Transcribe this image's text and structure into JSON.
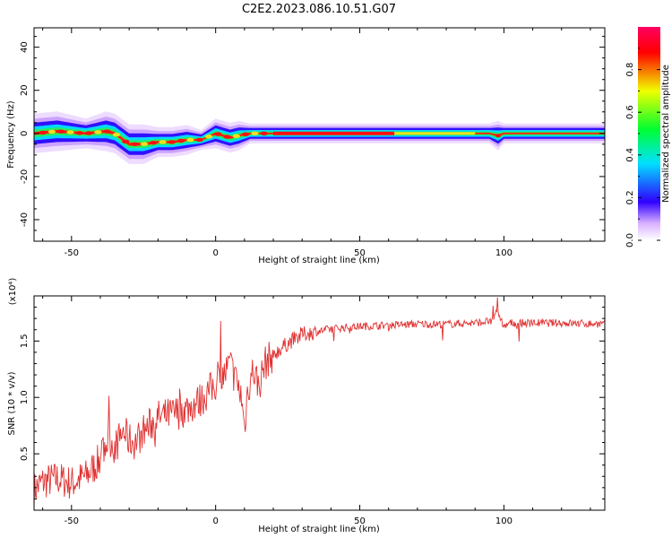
{
  "figure_title": "C2E2.2023.086.10.51.G07",
  "chart_data": [
    {
      "type": "heatmap",
      "title": "",
      "xlabel": "Height of straight line (km)",
      "ylabel": "Frequency (Hz)",
      "xlim": [
        -63,
        135
      ],
      "ylim": [
        -50,
        49
      ],
      "x_ticks": [
        "-50",
        "0",
        "50",
        "100"
      ],
      "y_ticks": [
        "40",
        "20",
        "0",
        "-20",
        "-40"
      ],
      "colorbar": {
        "label": "Normalized spectral amplitude",
        "range": [
          0,
          1
        ],
        "ticks": [
          "0.0",
          "0.2",
          "0.4",
          "0.6",
          "0.8"
        ],
        "colormap": [
          "#ffffff",
          "#d9b0ff",
          "#3000ff",
          "#00e0ff",
          "#00ff30",
          "#f0ff00",
          "#ff0000",
          "#ff0060"
        ]
      },
      "ridge": {
        "description_x_km": [
          -63,
          -55,
          -45,
          -38,
          -35,
          -30,
          -25,
          -20,
          -15,
          -10,
          -5,
          0,
          5,
          8,
          12,
          20,
          40,
          60,
          80,
          95,
          98,
          100,
          135
        ],
        "center_hz": [
          0,
          1,
          0,
          1,
          0,
          -5,
          -5,
          -4,
          -4,
          -3,
          -3,
          0,
          -2,
          -1,
          0,
          0,
          0,
          0,
          0,
          0,
          -1,
          0,
          0
        ],
        "halfwidth_hz": [
          4,
          4,
          3,
          4,
          4,
          4,
          4,
          3,
          3,
          3,
          2,
          3,
          3,
          3,
          2,
          2,
          2,
          2,
          2,
          2,
          3,
          2,
          2
        ]
      }
    },
    {
      "type": "line",
      "title": "",
      "xlabel": "Height of straight line (km)",
      "ylabel": "SNR (10 * v/v)",
      "y_multiplier": "(x10⁴)",
      "xlim": [
        -63,
        135
      ],
      "ylim": [
        0,
        1.9
      ],
      "x_ticks": [
        "-50",
        "0",
        "50",
        "100"
      ],
      "y_ticks": [
        "0.5",
        "1.0",
        "1.5"
      ],
      "line_color": "#e03030",
      "series": [
        {
          "x": [
            -63,
            -60,
            -55,
            -50,
            -45,
            -40,
            -37,
            -35,
            -32,
            -30,
            -28,
            -25,
            -20,
            -15,
            -10,
            -5,
            0,
            3,
            5,
            7,
            9,
            10,
            11,
            13,
            15,
            17,
            20,
            25,
            30,
            35,
            40,
            50,
            60,
            70,
            80,
            90,
            96,
            98,
            100,
            102,
            110,
            120,
            135
          ],
          "values": [
            0.18,
            0.25,
            0.28,
            0.24,
            0.3,
            0.45,
            0.65,
            0.55,
            0.7,
            0.62,
            0.6,
            0.7,
            0.82,
            0.85,
            0.9,
            0.98,
            1.12,
            1.2,
            1.3,
            1.15,
            1.0,
            0.72,
            1.05,
            1.25,
            1.1,
            1.3,
            1.38,
            1.48,
            1.56,
            1.58,
            1.61,
            1.63,
            1.64,
            1.65,
            1.65,
            1.66,
            1.68,
            1.75,
            1.63,
            1.66,
            1.66,
            1.66,
            1.65
          ]
        }
      ]
    }
  ]
}
